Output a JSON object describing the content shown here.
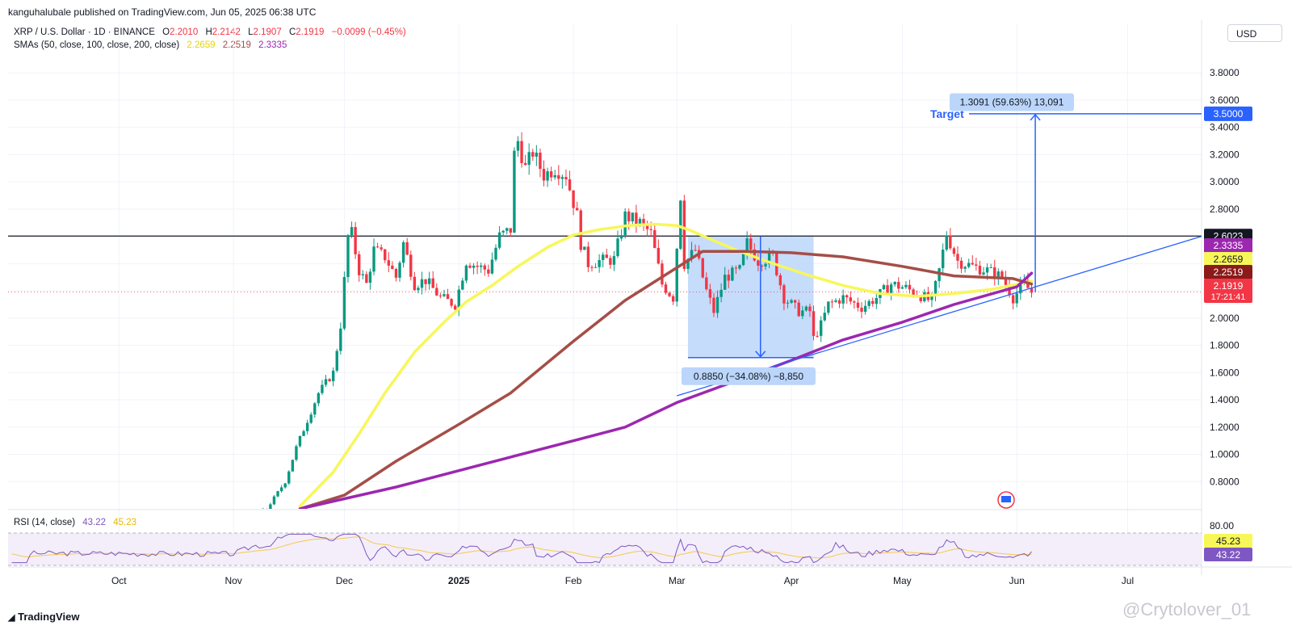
{
  "header": {
    "published": "kanguhalubale published on TradingView.com, Jun 05, 2025 06:38 UTC",
    "symbol": "XRP / U.S. Dollar · 1D · BINANCE",
    "o_label": "O",
    "o": "2.2010",
    "h_label": "H",
    "h": "2.2142",
    "l_label": "L",
    "l": "2.1907",
    "c_label": "C",
    "c": "2.1919",
    "change": "−0.0099 (−0.45%)",
    "sma_label": "SMAs (50, close, 100, close, 200, close)",
    "sma50": "2.2659",
    "sma100": "2.2519",
    "sma200": "2.3335",
    "currency": "USD"
  },
  "rsi": {
    "label": "RSI (14, close)",
    "value": "43.22",
    "ma": "45.23",
    "level": "80.00"
  },
  "chart_data": {
    "type": "candlestick",
    "y_ticks": [
      "3.8000",
      "3.6000",
      "3.4000",
      "3.2000",
      "3.0000",
      "2.8000",
      "2.6000",
      "2.4000",
      "2.2000",
      "2.0000",
      "1.8000",
      "1.6000",
      "1.4000",
      "1.2000",
      "1.0000",
      "0.8000"
    ],
    "y_range": [
      0.6,
      3.92
    ],
    "x_ticks": [
      "Oct",
      "Nov",
      "Dec",
      "2025",
      "Feb",
      "Mar",
      "Apr",
      "May",
      "Jun",
      "Jul"
    ],
    "x_tick_dates": [
      "2024-10-01",
      "2024-11-01",
      "2024-12-01",
      "2025-01-01",
      "2025-02-01",
      "2025-03-01",
      "2025-04-01",
      "2025-05-01",
      "2025-06-01",
      "2025-07-01"
    ],
    "x_range": [
      "2024-09-01",
      "2025-07-21"
    ],
    "close_path": [
      [
        "2024-09-01",
        0.56
      ],
      [
        "2024-10-01",
        0.54
      ],
      [
        "2024-11-01",
        0.5
      ],
      [
        "2024-11-10",
        0.6
      ],
      [
        "2024-11-15",
        0.8
      ],
      [
        "2024-11-18",
        1.05
      ],
      [
        "2024-11-21",
        1.25
      ],
      [
        "2024-11-24",
        1.45
      ],
      [
        "2024-11-28",
        1.6
      ],
      [
        "2024-11-30",
        1.95
      ],
      [
        "2024-12-02",
        2.6
      ],
      [
        "2024-12-03",
        2.62
      ],
      [
        "2024-12-05",
        2.35
      ],
      [
        "2024-12-07",
        2.25
      ],
      [
        "2024-12-09",
        2.5
      ],
      [
        "2024-12-12",
        2.45
      ],
      [
        "2024-12-15",
        2.3
      ],
      [
        "2024-12-17",
        2.55
      ],
      [
        "2024-12-20",
        2.25
      ],
      [
        "2024-12-23",
        2.28
      ],
      [
        "2024-12-27",
        2.15
      ],
      [
        "2024-12-31",
        2.1
      ],
      [
        "2025-01-03",
        2.42
      ],
      [
        "2025-01-06",
        2.38
      ],
      [
        "2025-01-09",
        2.35
      ],
      [
        "2025-01-12",
        2.6
      ],
      [
        "2025-01-15",
        2.65
      ],
      [
        "2025-01-16",
        3.2
      ],
      [
        "2025-01-17",
        3.3
      ],
      [
        "2025-01-19",
        3.1
      ],
      [
        "2025-01-21",
        3.22
      ],
      [
        "2025-01-24",
        3.05
      ],
      [
        "2025-01-27",
        3.1
      ],
      [
        "2025-01-30",
        3.05
      ],
      [
        "2025-02-02",
        2.75
      ],
      [
        "2025-02-03",
        2.55
      ],
      [
        "2025-02-05",
        2.4
      ],
      [
        "2025-02-08",
        2.42
      ],
      [
        "2025-02-12",
        2.43
      ],
      [
        "2025-02-15",
        2.75
      ],
      [
        "2025-02-19",
        2.7
      ],
      [
        "2025-02-22",
        2.62
      ],
      [
        "2025-02-25",
        2.25
      ],
      [
        "2025-02-28",
        2.15
      ],
      [
        "2025-03-02",
        2.9
      ],
      [
        "2025-03-03",
        2.4
      ],
      [
        "2025-03-06",
        2.5
      ],
      [
        "2025-03-09",
        2.2
      ],
      [
        "2025-03-11",
        2.05
      ],
      [
        "2025-03-14",
        2.3
      ],
      [
        "2025-03-18",
        2.35
      ],
      [
        "2025-03-20",
        2.55
      ],
      [
        "2025-03-23",
        2.42
      ],
      [
        "2025-03-27",
        2.45
      ],
      [
        "2025-03-30",
        2.15
      ],
      [
        "2025-04-03",
        2.05
      ],
      [
        "2025-04-06",
        2.05
      ],
      [
        "2025-04-07",
        1.85
      ],
      [
        "2025-04-09",
        1.95
      ],
      [
        "2025-04-11",
        2.1
      ],
      [
        "2025-04-15",
        2.15
      ],
      [
        "2025-04-20",
        2.08
      ],
      [
        "2025-04-24",
        2.15
      ],
      [
        "2025-04-28",
        2.25
      ],
      [
        "2025-05-02",
        2.22
      ],
      [
        "2025-05-05",
        2.18
      ],
      [
        "2025-05-09",
        2.12
      ],
      [
        "2025-05-11",
        2.35
      ],
      [
        "2025-05-13",
        2.62
      ],
      [
        "2025-05-16",
        2.42
      ],
      [
        "2025-05-20",
        2.38
      ],
      [
        "2025-05-24",
        2.35
      ],
      [
        "2025-05-28",
        2.3
      ],
      [
        "2025-05-31",
        2.15
      ],
      [
        "2025-06-03",
        2.25
      ],
      [
        "2025-06-05",
        2.19
      ]
    ],
    "series": [
      {
        "name": "SMA 50",
        "color": "#f7f75a",
        "points": [
          [
            "2024-11-19",
            0.62
          ],
          [
            "2024-11-28",
            0.87
          ],
          [
            "2024-12-05",
            1.15
          ],
          [
            "2024-12-12",
            1.45
          ],
          [
            "2024-12-20",
            1.75
          ],
          [
            "2024-12-28",
            1.97
          ],
          [
            "2025-01-03",
            2.12
          ],
          [
            "2025-01-10",
            2.24
          ],
          [
            "2025-01-17",
            2.38
          ],
          [
            "2025-01-25",
            2.52
          ],
          [
            "2025-02-01",
            2.61
          ],
          [
            "2025-02-08",
            2.65
          ],
          [
            "2025-02-16",
            2.68
          ],
          [
            "2025-02-23",
            2.69
          ],
          [
            "2025-03-01",
            2.68
          ],
          [
            "2025-03-05",
            2.64
          ],
          [
            "2025-03-10",
            2.58
          ],
          [
            "2025-03-17",
            2.5
          ],
          [
            "2025-03-25",
            2.42
          ],
          [
            "2025-04-05",
            2.32
          ],
          [
            "2025-04-15",
            2.24
          ],
          [
            "2025-04-25",
            2.18
          ],
          [
            "2025-05-05",
            2.16
          ],
          [
            "2025-05-15",
            2.18
          ],
          [
            "2025-05-25",
            2.21
          ],
          [
            "2025-06-05",
            2.27
          ]
        ]
      },
      {
        "name": "SMA 100",
        "color": "#a54e47",
        "points": [
          [
            "2024-11-19",
            0.6
          ],
          [
            "2024-12-01",
            0.7
          ],
          [
            "2024-12-15",
            0.95
          ],
          [
            "2025-01-01",
            1.22
          ],
          [
            "2025-01-15",
            1.45
          ],
          [
            "2025-02-01",
            1.83
          ],
          [
            "2025-02-15",
            2.13
          ],
          [
            "2025-03-01",
            2.37
          ],
          [
            "2025-03-08",
            2.49
          ],
          [
            "2025-03-20",
            2.49
          ],
          [
            "2025-04-01",
            2.48
          ],
          [
            "2025-04-15",
            2.45
          ],
          [
            "2025-05-01",
            2.38
          ],
          [
            "2025-05-15",
            2.31
          ],
          [
            "2025-05-31",
            2.29
          ],
          [
            "2025-06-05",
            2.25
          ]
        ]
      },
      {
        "name": "SMA 200",
        "color": "#9c27b0",
        "points": [
          [
            "2024-11-19",
            0.6
          ],
          [
            "2024-12-15",
            0.76
          ],
          [
            "2025-01-15",
            0.98
          ],
          [
            "2025-02-01",
            1.1
          ],
          [
            "2025-02-15",
            1.2
          ],
          [
            "2025-03-01",
            1.38
          ],
          [
            "2025-03-15",
            1.52
          ],
          [
            "2025-04-01",
            1.69
          ],
          [
            "2025-04-15",
            1.84
          ],
          [
            "2025-05-01",
            1.97
          ],
          [
            "2025-05-15",
            2.1
          ],
          [
            "2025-06-01",
            2.23
          ],
          [
            "2025-06-05",
            2.33
          ]
        ]
      }
    ],
    "annotations": {
      "resistance": {
        "value": 2.6023,
        "label": "2.6023"
      },
      "trendline": [
        [
          "2025-03-01",
          1.43
        ],
        [
          "2025-07-21",
          2.6
        ]
      ],
      "drawdown_box": {
        "from": "2025-03-04",
        "to": "2025-04-07",
        "top": 2.6,
        "bottom": 1.71,
        "label": "0.8850 (−34.08%) −8,850"
      },
      "target": {
        "text": "Target",
        "value": 3.5,
        "label": "1.3091 (59.63%) 13,091",
        "date": "2025-06-06",
        "base": 2.19,
        "price_tag": "3.5000"
      }
    },
    "price_tags": [
      {
        "value": 2.3335,
        "text": "2.3335",
        "bg": "#9c27b0",
        "fg": "#ffffff"
      },
      {
        "value": 2.2659,
        "text": "2.2659",
        "bg": "#f7f75a",
        "fg": "#131722"
      },
      {
        "value": 2.2519,
        "text": "2.2519",
        "bg": "#8b1a1a",
        "fg": "#ffffff"
      },
      {
        "value": 2.1919,
        "text": "2.1919",
        "bg": "#f23645",
        "fg": "#ffffff",
        "sub": "17:21:41"
      }
    ],
    "rsi_y_ticks": [
      "80.00"
    ],
    "rsi_tags": [
      {
        "text": "45.23",
        "bg": "#f7f75a",
        "fg": "#131722"
      },
      {
        "text": "43.22",
        "bg": "#7e57c2",
        "fg": "#ffffff"
      }
    ]
  },
  "footer": {
    "logo": "TradingView",
    "watermark": "@Crytolover_01"
  }
}
